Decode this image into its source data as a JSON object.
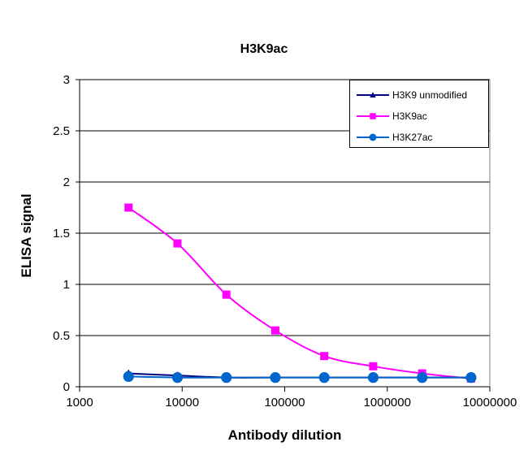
{
  "chart_data": {
    "type": "line",
    "title": "H3K9ac",
    "xlabel": "Antibody dilution",
    "ylabel": "ELISA signal",
    "xscale": "log",
    "xlim": [
      1000,
      10000000
    ],
    "ylim": [
      0,
      3
    ],
    "x_ticks": [
      "1000",
      "10000",
      "100000",
      "1000000",
      "10000000"
    ],
    "y_ticks": [
      "0",
      "0.5",
      "1",
      "1.5",
      "2",
      "2.5",
      "3"
    ],
    "grid": "horizontal",
    "legend_position": "top-right",
    "x": [
      3000,
      9000,
      27000,
      81000,
      243000,
      729000,
      2187000,
      6561000
    ],
    "series": [
      {
        "name": "H3K9 unmodified",
        "color": "#000080",
        "marker": "triangle",
        "values": [
          0.13,
          0.11,
          0.09,
          0.09,
          0.09,
          0.09,
          0.09,
          0.09
        ]
      },
      {
        "name": "H3K9ac",
        "color": "#FF00FF",
        "marker": "square",
        "values": [
          1.75,
          1.4,
          0.9,
          0.55,
          0.3,
          0.2,
          0.13,
          0.08
        ]
      },
      {
        "name": "H3K27ac",
        "color": "#0066CC",
        "marker": "circle",
        "values": [
          0.1,
          0.09,
          0.09,
          0.09,
          0.09,
          0.09,
          0.09,
          0.09
        ]
      }
    ]
  }
}
